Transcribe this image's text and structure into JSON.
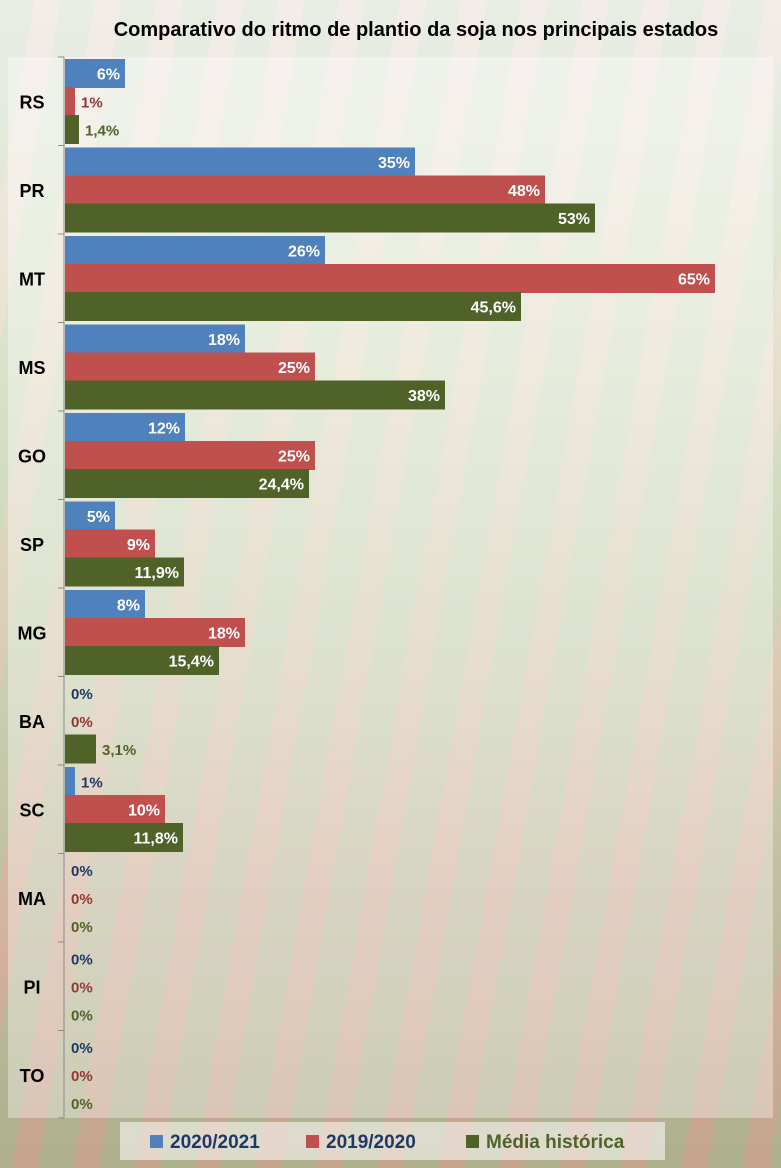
{
  "chart_data": {
    "type": "bar",
    "orientation": "horizontal",
    "title": "Comparativo do ritmo de plantio da soja nos principais estados",
    "xlabel": "",
    "ylabel": "",
    "xlim": [
      0,
      65
    ],
    "grid": false,
    "legend_position": "bottom",
    "categories": [
      "RS",
      "PR",
      "MT",
      "MS",
      "GO",
      "SP",
      "MG",
      "BA",
      "SC",
      "MA",
      "PI",
      "TO"
    ],
    "series": [
      {
        "name": "2020/2021",
        "color": "#4f81bd",
        "label_color": "#1f3864",
        "values": [
          6,
          35,
          26,
          18,
          12,
          5,
          8,
          0,
          1,
          0,
          0,
          0
        ],
        "labels": [
          "6%",
          "35%",
          "26%",
          "18%",
          "12%",
          "5%",
          "8%",
          "0%",
          "1%",
          "0%",
          "0%",
          "0%"
        ]
      },
      {
        "name": "2019/2020",
        "color": "#c0504d",
        "label_color": "#943634",
        "values": [
          1,
          48,
          65,
          25,
          25,
          9,
          18,
          0,
          10,
          0,
          0,
          0
        ],
        "labels": [
          "1%",
          "48%",
          "65%",
          "25%",
          "25%",
          "9%",
          "18%",
          "0%",
          "10%",
          "0%",
          "0%",
          "0%"
        ]
      },
      {
        "name": "Média histórica",
        "color": "#4f6228",
        "label_color": "#4f6228",
        "values": [
          1.4,
          53,
          45.6,
          38,
          24.4,
          11.9,
          15.4,
          3.1,
          11.8,
          0,
          0,
          0
        ],
        "labels": [
          "1,4%",
          "53%",
          "45,6%",
          "38%",
          "24,4%",
          "11,9%",
          "15,4%",
          "3,1%",
          "11,8%",
          "0%",
          "0%",
          "0%"
        ]
      }
    ]
  }
}
